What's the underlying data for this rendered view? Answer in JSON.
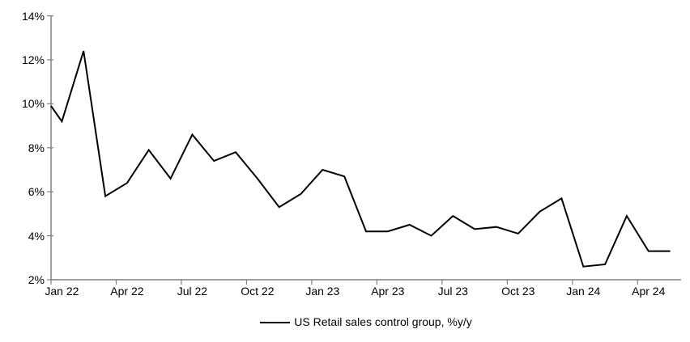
{
  "chart_data": {
    "type": "line",
    "title": "",
    "categories": [
      "Jan 22",
      "Feb 22",
      "Mar 22",
      "Apr 22",
      "May 22",
      "Jun 22",
      "Jul 22",
      "Aug 22",
      "Sep 22",
      "Oct 22",
      "Nov 22",
      "Dec 22",
      "Jan 23",
      "Feb 23",
      "Mar 23",
      "Apr 23",
      "May 23",
      "Jun 23",
      "Jul 23",
      "Aug 23",
      "Sep 23",
      "Oct 23",
      "Nov 23",
      "Dec 23",
      "Jan 24",
      "Feb 24",
      "Mar 24",
      "Apr 24",
      "May 24"
    ],
    "series": [
      {
        "name": "US Retail sales control group, %y/y",
        "values": [
          9.2,
          12.4,
          5.8,
          6.4,
          7.9,
          6.6,
          8.6,
          7.4,
          7.8,
          6.6,
          5.3,
          5.9,
          7.0,
          6.7,
          4.2,
          4.2,
          4.5,
          4.0,
          4.9,
          4.3,
          4.4,
          4.1,
          5.1,
          5.7,
          2.6,
          2.7,
          4.9,
          3.3,
          3.3
        ]
      }
    ],
    "pre_point": {
      "value": 10.6,
      "note": "line enters plot clipped at the y-axis at about 9.9%"
    },
    "ylim": [
      2,
      14
    ],
    "y_tick_labels": [
      "2%",
      "4%",
      "6%",
      "8%",
      "10%",
      "12%",
      "14%"
    ],
    "x_tick_labels_shown": [
      "Jan 22",
      "Apr 22",
      "Jul 22",
      "Oct 22",
      "Jan 23",
      "Apr 23",
      "Jul 23",
      "Oct 23",
      "Jan 24",
      "Apr 24"
    ],
    "x_tick_label_every": 3,
    "grid": false,
    "legend_position": "bottom",
    "line_color": "#000000",
    "axis_color": "#808080"
  }
}
